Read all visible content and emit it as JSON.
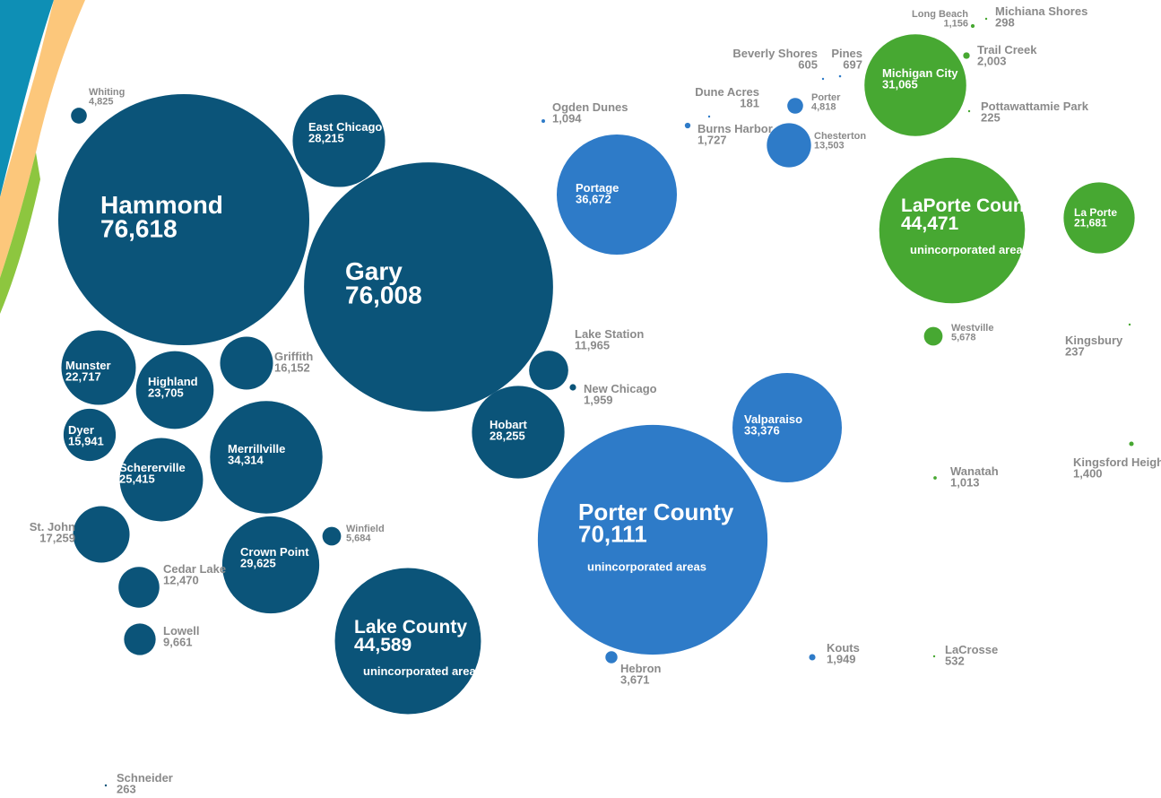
{
  "chart_data": {
    "type": "bubble",
    "annotation": "unincorporated areas",
    "groups": [
      {
        "color": "#0b5479",
        "names": [
          "Whiting",
          "Hammond",
          "East Chicago",
          "Gary",
          "Munster",
          "Highland",
          "Griffith",
          "Dyer",
          "Schererville",
          "Merrillville",
          "St. John",
          "Crown Point",
          "Winfield",
          "Cedar Lake",
          "Lowell",
          "Lake County",
          "Lake Station",
          "New Chicago",
          "Hobart",
          "Schneider"
        ],
        "values": [
          4825,
          76618,
          28215,
          76008,
          22717,
          23705,
          16152,
          15941,
          25415,
          34314,
          17259,
          29625,
          5684,
          12470,
          9661,
          44589,
          11965,
          1959,
          28255,
          263
        ],
        "value_labels": [
          "4,825",
          "76,618",
          "28,215",
          "76,008",
          "22,717",
          "23,705",
          "16,152",
          "15,941",
          "25,415",
          "34,314",
          "17,259",
          "29,625",
          "5,684",
          "12,470",
          "9,661",
          "44,589",
          "11,965",
          "1,959",
          "28,255",
          "263"
        ]
      },
      {
        "color": "#2e7bc8",
        "names": [
          "Ogden Dunes",
          "Portage",
          "Dune Acres",
          "Burns Harbor",
          "Beverly Shores",
          "Pines",
          "Porter",
          "Chesterton",
          "Valparaiso",
          "Porter County",
          "Hebron",
          "Kouts"
        ],
        "values": [
          1094,
          36672,
          181,
          1727,
          605,
          697,
          4818,
          13503,
          33376,
          70111,
          3671,
          1949
        ],
        "value_labels": [
          "1,094",
          "36,672",
          "181",
          "1,727",
          "605",
          "697",
          "4,818",
          "13,503",
          "33,376",
          "70,111",
          "3,671",
          "1,949"
        ]
      },
      {
        "color": "#47a832",
        "names": [
          "Long Beach",
          "Michiana Shores",
          "Trail Creek",
          "Michigan City",
          "Pottawattamie Park",
          "LaPorte County",
          "La Porte",
          "Westville",
          "Kingsbury",
          "Kingsford Heights",
          "Wanatah",
          "LaCrosse"
        ],
        "values": [
          1156,
          298,
          2003,
          31065,
          225,
          44471,
          21681,
          5678,
          237,
          1400,
          1013,
          532
        ],
        "value_labels": [
          "1,156",
          "298",
          "2,003",
          "31,065",
          "225",
          "44,471",
          "21,681",
          "5,678",
          "237",
          "1,400",
          "1,013",
          "532"
        ]
      }
    ]
  }
}
